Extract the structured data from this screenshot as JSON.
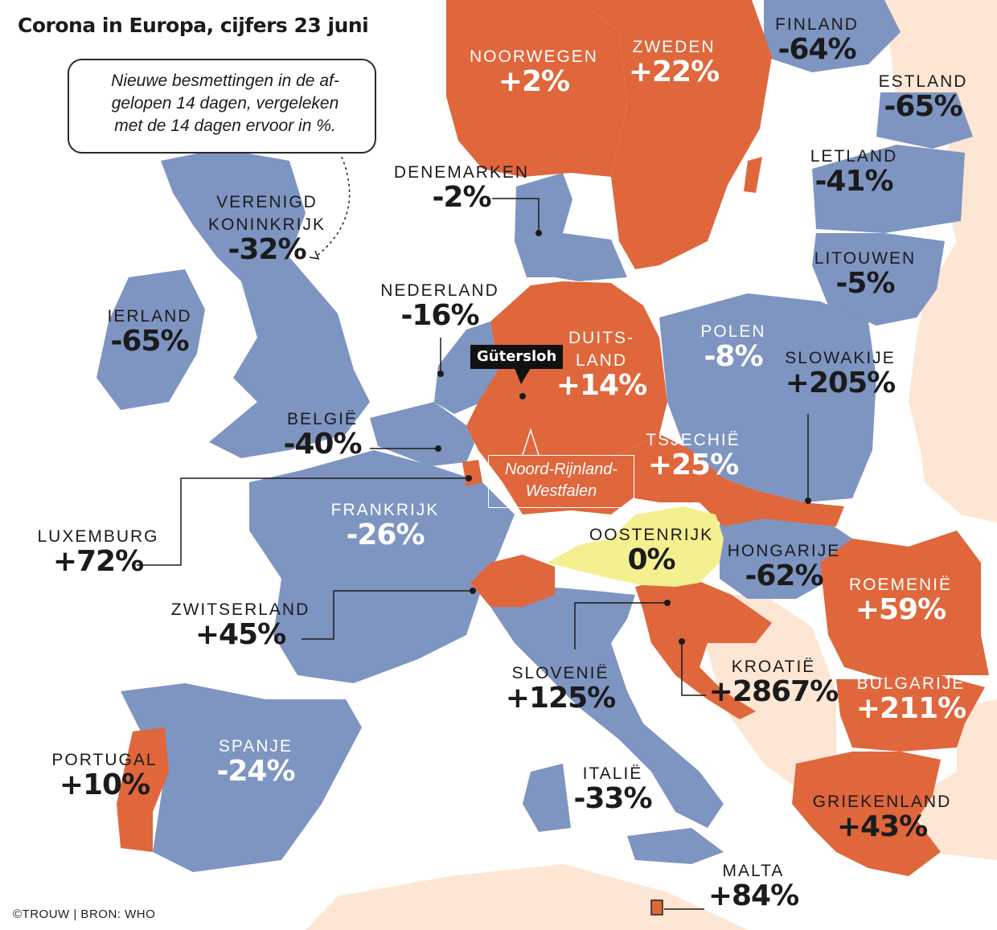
{
  "title": "Corona in Europa, cijfers 23 juni",
  "legend": {
    "line1": "Nieuwe besmettingen in de af-",
    "line2": "gelopen 14 dagen, vergeleken",
    "line3": "met de 14 dagen ervoor in %."
  },
  "colors": {
    "increase": "#e0663c",
    "decrease": "#7e95c2",
    "unchanged": "#f4f08f",
    "other_land": "#fde6d3",
    "sea": "#ffffff"
  },
  "countries": {
    "noorwegen": {
      "name": "NOORWEGEN",
      "value": "+2%"
    },
    "zweden": {
      "name": "ZWEDEN",
      "value": "+22%"
    },
    "finland": {
      "name": "FINLAND",
      "value": "-64%"
    },
    "estland": {
      "name": "ESTLAND",
      "value": "-65%"
    },
    "letland": {
      "name": "LETLAND",
      "value": "-41%"
    },
    "litouwen": {
      "name": "LITOUWEN",
      "value": "-5%"
    },
    "denemarken": {
      "name": "DENEMARKEN",
      "value": "-2%"
    },
    "vk": {
      "name1": "VERENIGD",
      "name2": "KONINKRIJK",
      "value": "-32%"
    },
    "ierland": {
      "name": "IERLAND",
      "value": "-65%"
    },
    "nederland": {
      "name": "NEDERLAND",
      "value": "-16%"
    },
    "duitsland": {
      "name1": "DUITS-",
      "name2": "LAND",
      "value": "+14%"
    },
    "polen": {
      "name": "POLEN",
      "value": "-8%"
    },
    "slowakije": {
      "name": "SLOWAKIJE",
      "value": "+205%"
    },
    "belgie": {
      "name": "BELGIË",
      "value": "-40%"
    },
    "tsjechie": {
      "name": "TSJECHIË",
      "value": "+25%"
    },
    "luxemburg": {
      "name": "LUXEMBURG",
      "value": "+72%"
    },
    "frankrijk": {
      "name": "FRANKRIJK",
      "value": "-26%"
    },
    "oostenrijk": {
      "name": "OOSTENRIJK",
      "value": "0%"
    },
    "hongarije": {
      "name": "HONGARIJE",
      "value": "-62%"
    },
    "roemenie": {
      "name": "ROEMENIË",
      "value": "+59%"
    },
    "zwitserland": {
      "name": "ZWITSERLAND",
      "value": "+45%"
    },
    "slovenie": {
      "name": "SLOVENIË",
      "value": "+125%"
    },
    "kroatie": {
      "name": "KROATIË",
      "value": "+2867%"
    },
    "bulgarije": {
      "name": "BULGARIJE",
      "value": "+211%"
    },
    "portugal": {
      "name": "PORTUGAL",
      "value": "+10%"
    },
    "spanje": {
      "name": "SPANJE",
      "value": "-24%"
    },
    "italie": {
      "name": "ITALIË",
      "value": "-33%"
    },
    "griekenland": {
      "name": "GRIEKENLAND",
      "value": "+43%"
    },
    "malta": {
      "name": "MALTA",
      "value": "+84%"
    }
  },
  "gutersloh": "Gütersloh",
  "nrw": {
    "line1": "Noord-Rijnland-",
    "line2": "Westfalen"
  },
  "credit": "©TROUW | BRON: WHO"
}
